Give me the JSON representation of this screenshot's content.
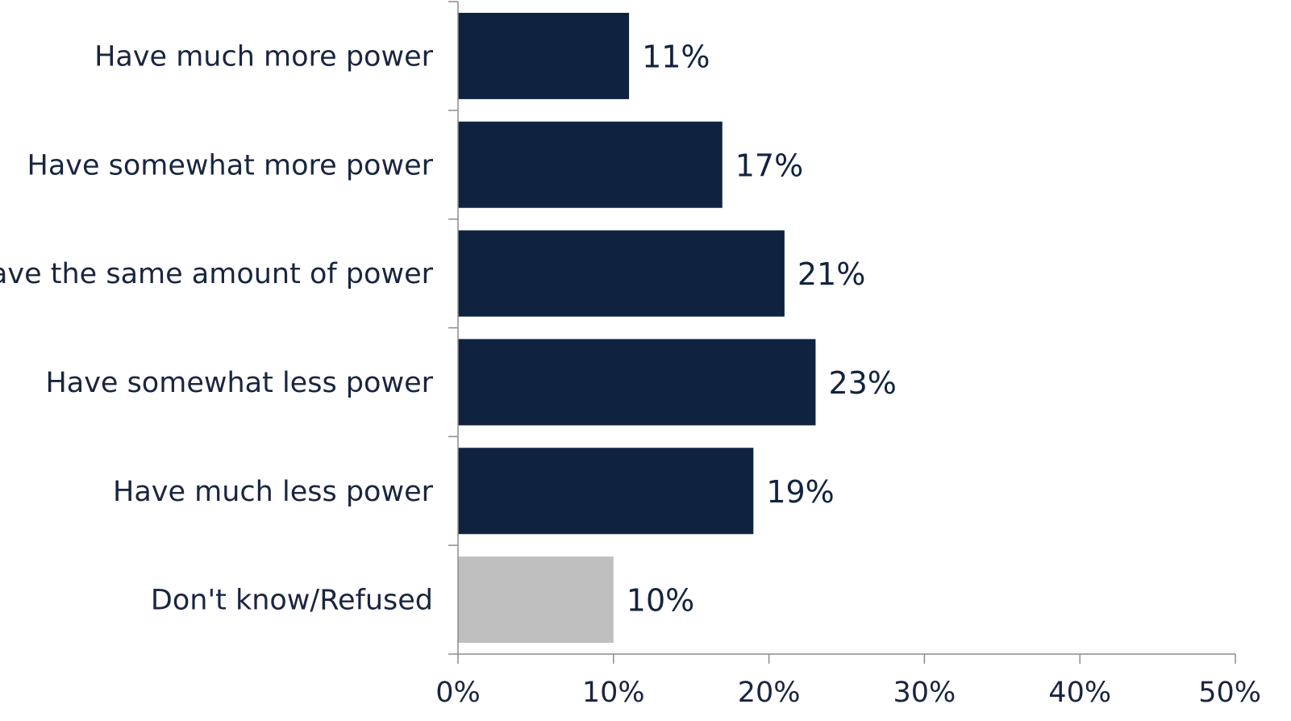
{
  "chart_data": {
    "type": "bar",
    "orientation": "horizontal",
    "categories": [
      "Have much more power",
      "Have somewhat more power",
      "Have the same amount of power",
      "Have somewhat less power",
      "Have much less power",
      "Don't know/Refused"
    ],
    "values": [
      11,
      17,
      21,
      23,
      19,
      10
    ],
    "value_labels": [
      "11%",
      "17%",
      "21%",
      "23%",
      "19%",
      "10%"
    ],
    "bar_colors": [
      "#0f2340",
      "#0f2340",
      "#0f2340",
      "#0f2340",
      "#0f2340",
      "#bfbfbf"
    ],
    "xlim": [
      0,
      50
    ],
    "xticks": [
      0,
      10,
      20,
      30,
      40,
      50
    ],
    "xtick_labels": [
      "0%",
      "10%",
      "20%",
      "30%",
      "40%",
      "50%"
    ],
    "grid": false,
    "legend": "none",
    "title": "",
    "xlabel": "",
    "ylabel": ""
  }
}
